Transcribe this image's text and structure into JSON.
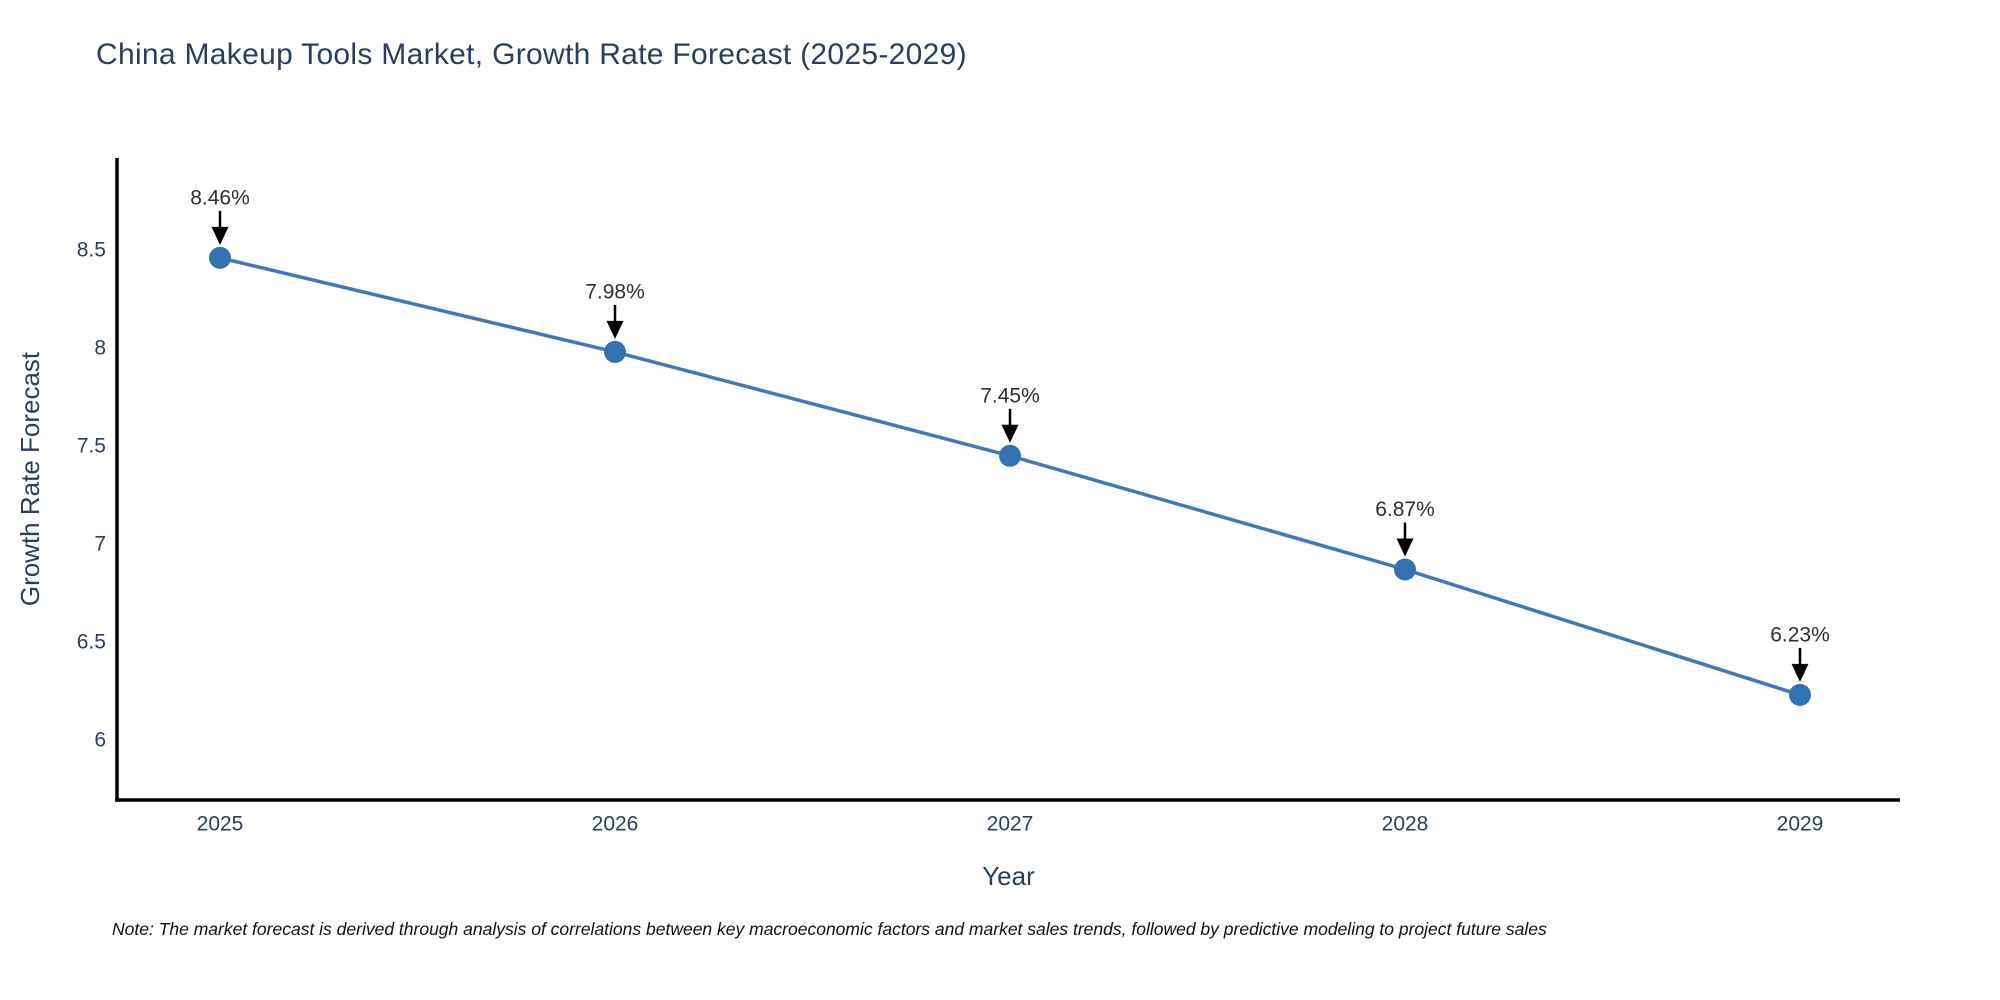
{
  "page": {
    "note": "Note: The market forecast is derived through analysis of correlations between key macroeconomic factors and market sales trends, followed by predictive modeling to project future sales"
  },
  "chart_data": {
    "type": "line",
    "title": "China Makeup Tools Market, Growth Rate Forecast (2025-2029)",
    "xlabel": "Year",
    "ylabel": "Growth Rate Forecast",
    "categories": [
      "2025",
      "2026",
      "2027",
      "2028",
      "2029"
    ],
    "series": [
      {
        "name": "Growth Rate Forecast",
        "values": [
          8.46,
          7.98,
          7.45,
          6.87,
          6.23
        ],
        "point_labels": [
          "8.46%",
          "7.98%",
          "7.45%",
          "6.87%",
          "6.23%"
        ]
      }
    ],
    "ytick_values": [
      6,
      6.5,
      7,
      7.5,
      8,
      8.5
    ],
    "ytick_labels": [
      "6",
      "6.5",
      "7",
      "7.5",
      "8",
      "8.5"
    ],
    "ylim": [
      5.69,
      8.97
    ],
    "grid": false,
    "legend_position": "none",
    "annotation_style": "black-down-arrow",
    "colors": {
      "line": "#4079b7",
      "marker": "#3471b0",
      "axis": "#000000",
      "axis_text": "#2a3f5f",
      "annotation_text": "#2f2f2f",
      "background": "#ffffff"
    }
  }
}
